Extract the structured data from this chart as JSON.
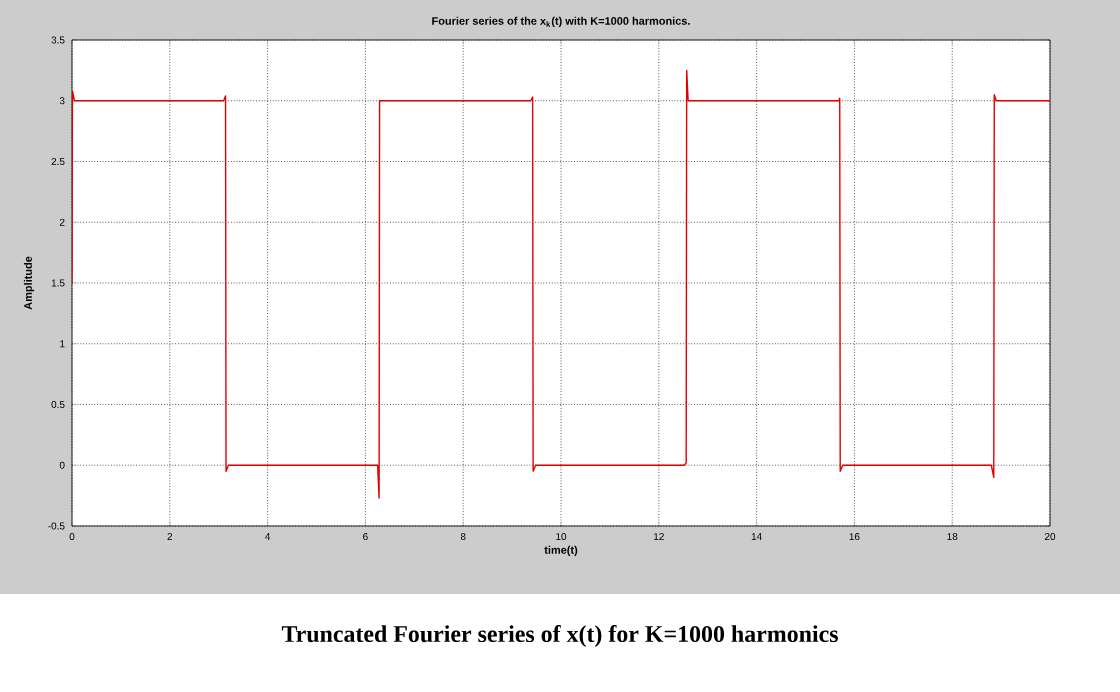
{
  "chart_data": {
    "type": "line",
    "title": "Fourier series of the x$_{k}$(t) with K=1000 harmonics.",
    "xlabel": "time(t)",
    "ylabel": "Amplitude",
    "annotations": [
      "Truncated Fourier series of x(t) for K=1000 harmonics"
    ],
    "xlim": [
      0,
      20
    ],
    "ylim": [
      -0.5,
      3.5
    ],
    "xticks": [
      0,
      2,
      4,
      6,
      8,
      10,
      12,
      14,
      16,
      18,
      20
    ],
    "yticks": [
      -0.5,
      0,
      0.5,
      1,
      1.5,
      2,
      2.5,
      3,
      3.5
    ],
    "grid": true,
    "marker": "none",
    "line_style": "solid",
    "series": [
      {
        "color": "#e00000",
        "x": [
          0,
          0.01,
          0.05,
          3.1,
          3.14,
          3.15,
          3.2,
          6.25,
          6.28,
          6.29,
          6.33,
          9.38,
          9.42,
          9.43,
          9.48,
          12.52,
          12.56,
          12.57,
          12.6,
          15.68,
          15.7,
          15.71,
          15.76,
          18.8,
          18.85,
          18.86,
          18.9,
          20
        ],
        "values": [
          1.5,
          3.08,
          3,
          3,
          3.04,
          -0.05,
          0,
          0,
          -0.27,
          3,
          3,
          3,
          3.03,
          -0.05,
          0,
          0,
          0.02,
          3.25,
          3,
          3,
          3.02,
          -0.05,
          0,
          0,
          -0.1,
          3.05,
          3,
          3
        ]
      }
    ]
  }
}
